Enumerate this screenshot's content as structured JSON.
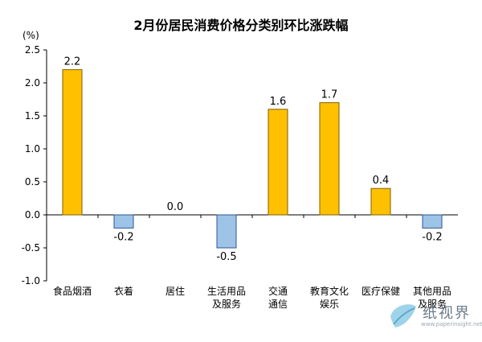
{
  "chart_data": {
    "type": "bar",
    "title": "2月份居民消费价格分类别环比涨跌幅",
    "unit_label": "(%)",
    "categories": [
      [
        "食品烟酒"
      ],
      [
        "衣着"
      ],
      [
        "居住"
      ],
      [
        "生活用品",
        "及服务"
      ],
      [
        "交通",
        "通信"
      ],
      [
        "教育文化",
        "娱乐"
      ],
      [
        "医疗保健"
      ],
      [
        "其他用品",
        "及服务"
      ]
    ],
    "values": [
      2.2,
      -0.2,
      0.0,
      -0.5,
      1.6,
      1.7,
      0.4,
      -0.2
    ],
    "value_labels": [
      "2.2",
      "-0.2",
      "0.0",
      "-0.5",
      "1.6",
      "1.7",
      "0.4",
      "-0.2"
    ],
    "ylim": [
      -1.0,
      2.5
    ],
    "yticks": [
      2.5,
      2.0,
      1.5,
      1.0,
      0.5,
      0.0,
      -0.5,
      -1.0
    ],
    "ytick_labels": [
      "2.5",
      "2.0",
      "1.5",
      "1.0",
      "0.5",
      "0.0",
      "-0.5",
      "-1.0"
    ],
    "colors": {
      "positive_fill": "#FFC000",
      "positive_stroke": "#7F6000",
      "negative_fill": "#9DC3E6",
      "negative_stroke": "#2F5597",
      "axis": "#000000"
    },
    "grid": false,
    "legend": "none"
  },
  "watermark": {
    "text": "纸视界",
    "subtext": "www.paperinsight.net",
    "icon": "leaf-logo-icon"
  }
}
